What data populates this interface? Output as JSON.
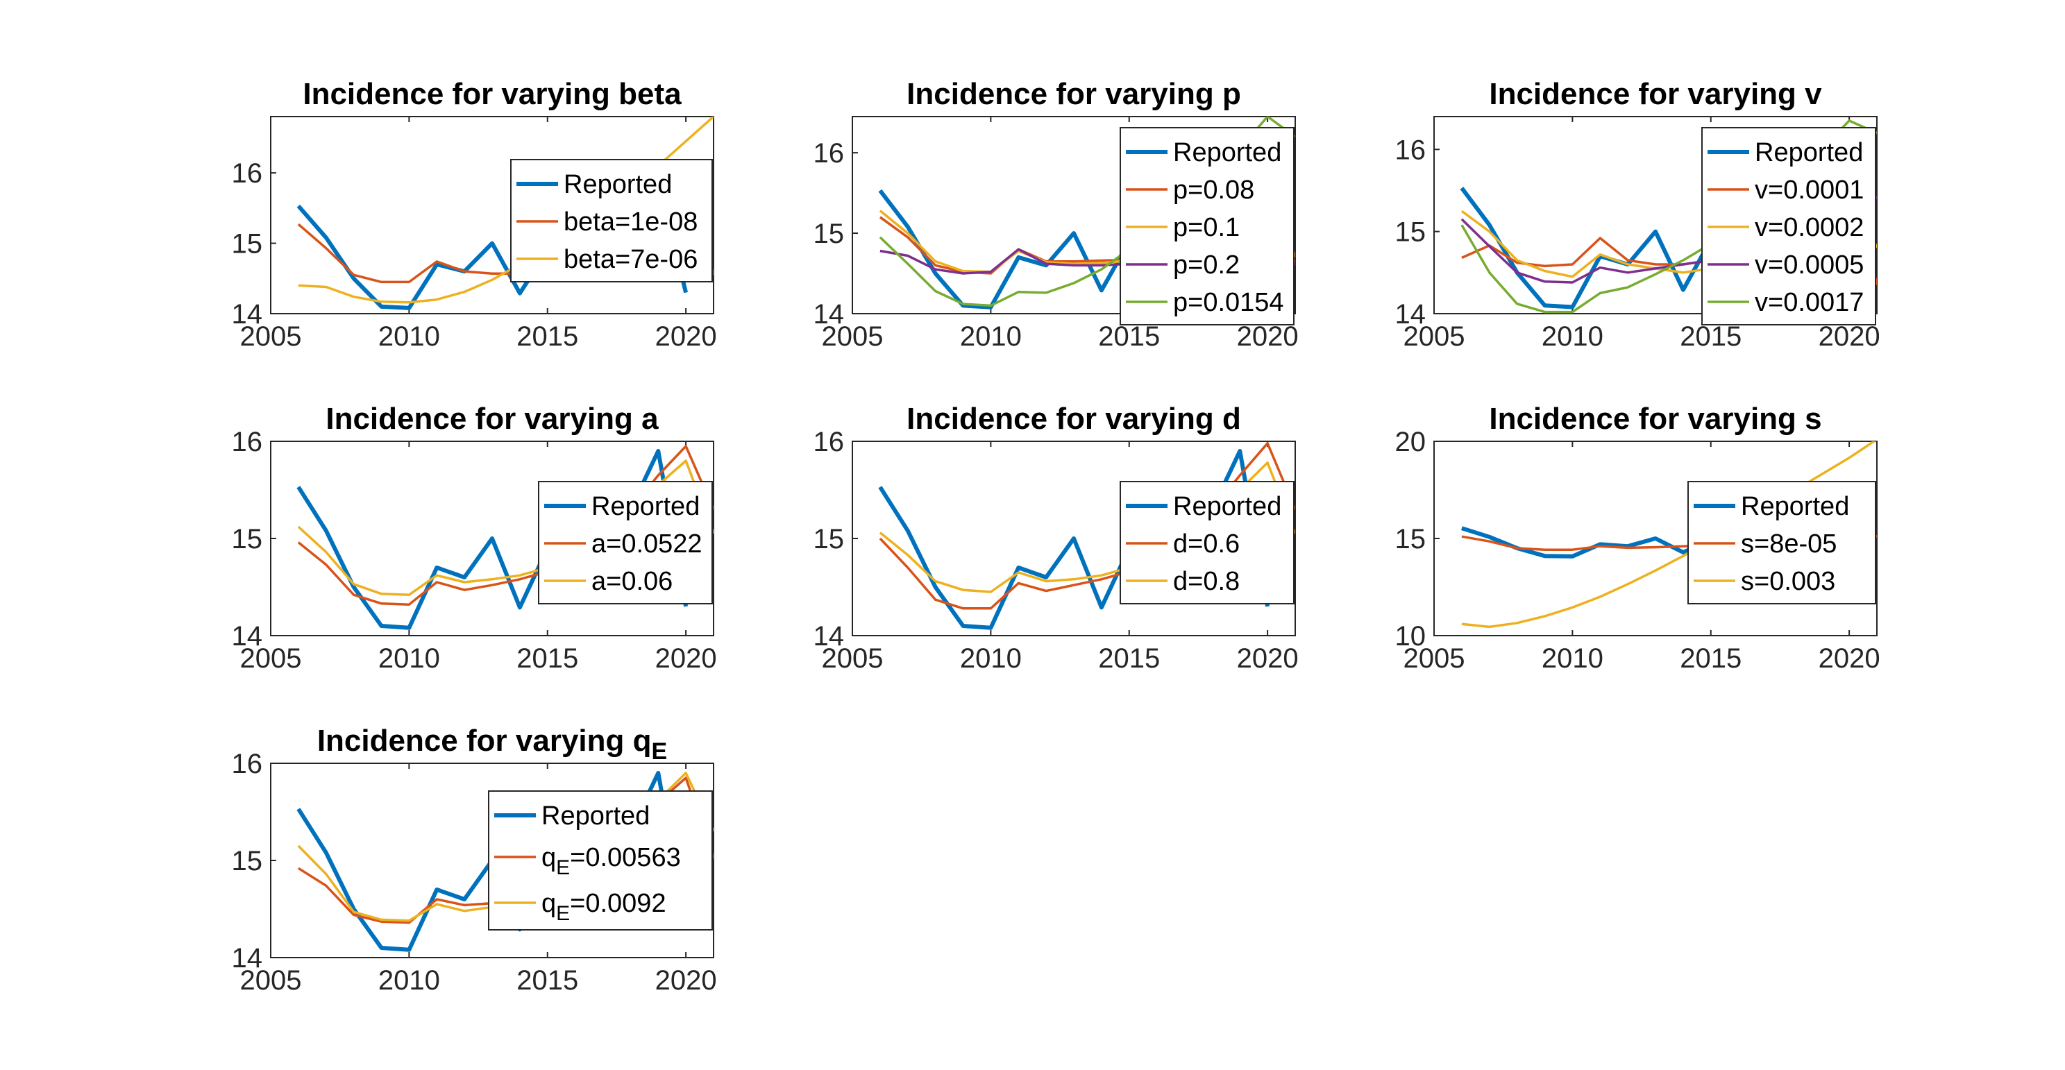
{
  "colors": {
    "reported": "#0072BD",
    "orange": "#D95319",
    "yellow": "#EDB120",
    "purple": "#7E2F8E",
    "green": "#77AC30"
  },
  "chart_data": [
    {
      "type": "line",
      "title": "Incidence for varying beta",
      "xlim": [
        2005,
        2021
      ],
      "ylim": [
        14,
        16.8
      ],
      "xticks": [
        "2005",
        "2010",
        "2015",
        "2020"
      ],
      "yticks": [
        "14",
        "15",
        "16"
      ],
      "legend": "right",
      "x": [
        2006,
        2007,
        2008,
        2009,
        2010,
        2011,
        2012,
        2013,
        2014,
        2015,
        2016,
        2017,
        2018,
        2019,
        2020,
        2021
      ],
      "series": [
        {
          "name": "Reported",
          "color": "reported",
          "width": 6,
          "values": [
            15.53,
            15.08,
            14.5,
            14.1,
            14.08,
            14.7,
            14.6,
            15.0,
            14.29,
            14.9,
            15.0,
            14.9,
            15.3,
            15.9,
            14.3,
            null
          ]
        },
        {
          "name": "beta=1e-08",
          "color": "orange",
          "width": 3.5,
          "values": [
            15.27,
            14.93,
            14.55,
            14.45,
            14.45,
            14.74,
            14.6,
            14.57,
            14.57,
            14.6,
            14.7,
            14.85,
            15.1,
            15.6,
            15.9,
            14.55
          ]
        },
        {
          "name": "beta=7e-06",
          "color": "yellow",
          "width": 3.5,
          "values": [
            14.4,
            14.38,
            14.24,
            14.17,
            14.16,
            14.2,
            14.31,
            14.48,
            14.7,
            14.95,
            15.2,
            15.5,
            15.8,
            16.1,
            16.45,
            16.8
          ]
        }
      ]
    },
    {
      "type": "line",
      "title": "Incidence for varying p",
      "xlim": [
        2005,
        2021
      ],
      "ylim": [
        14,
        16.45
      ],
      "xticks": [
        "2005",
        "2010",
        "2015",
        "2020"
      ],
      "yticks": [
        "14",
        "15",
        "16"
      ],
      "legend": "right",
      "x": [
        2006,
        2007,
        2008,
        2009,
        2010,
        2011,
        2012,
        2013,
        2014,
        2015,
        2016,
        2017,
        2018,
        2019,
        2020,
        2021
      ],
      "series": [
        {
          "name": "Reported",
          "color": "reported",
          "width": 6,
          "values": [
            15.53,
            15.08,
            14.5,
            14.1,
            14.08,
            14.7,
            14.6,
            15.0,
            14.29,
            14.9,
            15.0,
            14.9,
            15.3,
            15.9,
            14.3,
            null
          ]
        },
        {
          "name": "p=0.08",
          "color": "orange",
          "width": 3.5,
          "values": [
            15.2,
            14.95,
            14.6,
            14.52,
            14.5,
            14.8,
            14.65,
            14.65,
            14.66,
            14.67,
            14.75,
            14.9,
            15.1,
            15.5,
            15.9,
            14.6
          ]
        },
        {
          "name": "p=0.1",
          "color": "yellow",
          "width": 3.5,
          "values": [
            15.28,
            15.0,
            14.65,
            14.53,
            14.52,
            14.78,
            14.64,
            14.62,
            14.63,
            14.66,
            14.74,
            14.88,
            15.05,
            15.4,
            15.85,
            14.7
          ]
        },
        {
          "name": "p=0.2",
          "color": "purple",
          "width": 3.5,
          "values": [
            14.78,
            14.72,
            14.55,
            14.5,
            14.52,
            14.8,
            14.62,
            14.6,
            14.6,
            14.62,
            14.7,
            14.85,
            15.0,
            15.3,
            15.15,
            14.6
          ]
        },
        {
          "name": "p=0.0154",
          "color": "green",
          "width": 3.5,
          "values": [
            14.95,
            14.62,
            14.28,
            14.12,
            14.1,
            14.27,
            14.26,
            14.38,
            14.55,
            14.8,
            15.05,
            15.35,
            15.7,
            16.05,
            16.45,
            16.2
          ]
        }
      ]
    },
    {
      "type": "line",
      "title": "Incidence for varying v",
      "xlim": [
        2005,
        2021
      ],
      "ylim": [
        14,
        16.4
      ],
      "xticks": [
        "2005",
        "2010",
        "2015",
        "2020"
      ],
      "yticks": [
        "14",
        "15",
        "16"
      ],
      "legend": "right",
      "x": [
        2006,
        2007,
        2008,
        2009,
        2010,
        2011,
        2012,
        2013,
        2014,
        2015,
        2016,
        2017,
        2018,
        2019,
        2020,
        2021
      ],
      "series": [
        {
          "name": "Reported",
          "color": "reported",
          "width": 6,
          "values": [
            15.53,
            15.08,
            14.5,
            14.1,
            14.08,
            14.7,
            14.6,
            15.0,
            14.29,
            14.9,
            15.0,
            14.9,
            15.3,
            15.9,
            14.3,
            null
          ]
        },
        {
          "name": "v=0.0001",
          "color": "orange",
          "width": 3.5,
          "values": [
            14.68,
            14.83,
            14.62,
            14.58,
            14.6,
            14.92,
            14.65,
            14.6,
            14.6,
            14.65,
            14.75,
            14.9,
            15.1,
            15.5,
            15.8,
            14.35
          ]
        },
        {
          "name": "v=0.0002",
          "color": "yellow",
          "width": 3.5,
          "values": [
            15.25,
            15.0,
            14.65,
            14.52,
            14.45,
            14.72,
            14.6,
            14.55,
            14.5,
            14.55,
            14.65,
            14.8,
            15.0,
            15.3,
            15.6,
            14.8
          ]
        },
        {
          "name": "v=0.0005",
          "color": "purple",
          "width": 3.5,
          "values": [
            15.15,
            14.82,
            14.5,
            14.39,
            14.38,
            14.56,
            14.5,
            14.55,
            14.6,
            14.65,
            14.75,
            14.9,
            15.1,
            15.4,
            15.8,
            15.4
          ]
        },
        {
          "name": "v=0.0017",
          "color": "green",
          "width": 3.5,
          "values": [
            15.08,
            14.5,
            14.12,
            14.02,
            14.02,
            14.25,
            14.32,
            14.48,
            14.65,
            14.85,
            15.1,
            15.4,
            15.7,
            16.0,
            16.35,
            16.2
          ]
        }
      ]
    },
    {
      "type": "line",
      "title": "Incidence for varying a",
      "xlim": [
        2005,
        2021
      ],
      "ylim": [
        14,
        16
      ],
      "xticks": [
        "2005",
        "2010",
        "2015",
        "2020"
      ],
      "yticks": [
        "14",
        "15",
        "16"
      ],
      "legend": "right",
      "x": [
        2006,
        2007,
        2008,
        2009,
        2010,
        2011,
        2012,
        2013,
        2014,
        2015,
        2016,
        2017,
        2018,
        2019,
        2020,
        2021
      ],
      "series": [
        {
          "name": "Reported",
          "color": "reported",
          "width": 6,
          "values": [
            15.53,
            15.08,
            14.5,
            14.1,
            14.08,
            14.7,
            14.6,
            15.0,
            14.29,
            14.9,
            15.0,
            14.9,
            15.3,
            15.9,
            14.3,
            null
          ]
        },
        {
          "name": "a=0.0522",
          "color": "orange",
          "width": 3.5,
          "values": [
            14.96,
            14.73,
            14.42,
            14.33,
            14.32,
            14.55,
            14.47,
            14.52,
            14.58,
            14.66,
            14.8,
            15.0,
            15.3,
            15.65,
            15.95,
            15.3
          ]
        },
        {
          "name": "a=0.06",
          "color": "yellow",
          "width": 3.5,
          "values": [
            15.12,
            14.86,
            14.53,
            14.43,
            14.42,
            14.62,
            14.55,
            14.58,
            14.62,
            14.7,
            14.82,
            15.0,
            15.25,
            15.55,
            15.8,
            15.05
          ]
        }
      ]
    },
    {
      "type": "line",
      "title": "Incidence for varying d",
      "xlim": [
        2005,
        2021
      ],
      "ylim": [
        14,
        16
      ],
      "xticks": [
        "2005",
        "2010",
        "2015",
        "2020"
      ],
      "yticks": [
        "14",
        "15",
        "16"
      ],
      "legend": "right",
      "x": [
        2006,
        2007,
        2008,
        2009,
        2010,
        2011,
        2012,
        2013,
        2014,
        2015,
        2016,
        2017,
        2018,
        2019,
        2020,
        2021
      ],
      "series": [
        {
          "name": "Reported",
          "color": "reported",
          "width": 6,
          "values": [
            15.53,
            15.08,
            14.5,
            14.1,
            14.08,
            14.7,
            14.6,
            15.0,
            14.29,
            14.9,
            15.0,
            14.9,
            15.3,
            15.9,
            14.3,
            null
          ]
        },
        {
          "name": "d=0.6",
          "color": "orange",
          "width": 3.5,
          "values": [
            15.0,
            14.7,
            14.37,
            14.28,
            14.28,
            14.54,
            14.46,
            14.52,
            14.58,
            14.66,
            14.8,
            15.0,
            15.3,
            15.65,
            15.98,
            15.3
          ]
        },
        {
          "name": "d=0.8",
          "color": "yellow",
          "width": 3.5,
          "values": [
            15.06,
            14.83,
            14.56,
            14.47,
            14.45,
            14.65,
            14.56,
            14.58,
            14.62,
            14.7,
            14.82,
            15.0,
            15.22,
            15.5,
            15.78,
            15.05
          ]
        }
      ]
    },
    {
      "type": "line",
      "title": "Incidence for varying s",
      "xlim": [
        2005,
        2021
      ],
      "ylim": [
        10,
        20
      ],
      "xticks": [
        "2005",
        "2010",
        "2015",
        "2020"
      ],
      "yticks": [
        "10",
        "15",
        "20"
      ],
      "legend": "right",
      "x": [
        2006,
        2007,
        2008,
        2009,
        2010,
        2011,
        2012,
        2013,
        2014,
        2015,
        2016,
        2017,
        2018,
        2019,
        2020,
        2021
      ],
      "series": [
        {
          "name": "Reported",
          "color": "reported",
          "width": 6,
          "values": [
            15.53,
            15.08,
            14.5,
            14.1,
            14.08,
            14.7,
            14.6,
            15.0,
            14.29,
            14.9,
            15.0,
            14.9,
            15.3,
            15.9,
            14.3,
            null
          ]
        },
        {
          "name": "s=8e-05",
          "color": "orange",
          "width": 3.5,
          "values": [
            15.1,
            14.85,
            14.5,
            14.42,
            14.42,
            14.6,
            14.52,
            14.55,
            14.6,
            14.65,
            14.75,
            14.9,
            15.1,
            15.4,
            15.6,
            15.1
          ]
        },
        {
          "name": "s=0.003",
          "color": "yellow",
          "width": 3.5,
          "values": [
            10.6,
            10.45,
            10.65,
            11.0,
            11.45,
            12.0,
            12.65,
            13.35,
            14.1,
            14.9,
            15.75,
            16.6,
            17.45,
            18.3,
            19.15,
            20.1
          ]
        }
      ]
    },
    {
      "type": "line",
      "title": "Incidence for varying q",
      "title_subscript": "E",
      "xlim": [
        2005,
        2021
      ],
      "ylim": [
        14,
        16
      ],
      "xticks": [
        "2005",
        "2010",
        "2015",
        "2020"
      ],
      "yticks": [
        "14",
        "15",
        "16"
      ],
      "legend": "right",
      "x": [
        2006,
        2007,
        2008,
        2009,
        2010,
        2011,
        2012,
        2013,
        2014,
        2015,
        2016,
        2017,
        2018,
        2019,
        2020,
        2021
      ],
      "series": [
        {
          "name": "Reported",
          "color": "reported",
          "width": 6,
          "values": [
            15.53,
            15.08,
            14.5,
            14.1,
            14.08,
            14.7,
            14.6,
            15.0,
            14.29,
            14.9,
            15.0,
            14.9,
            15.3,
            15.9,
            14.3,
            null
          ]
        },
        {
          "name": "q",
          "name_subscript": "E",
          "name_suffix": "=0.00563",
          "color": "orange",
          "width": 3.5,
          "values": [
            14.92,
            14.74,
            14.44,
            14.37,
            14.36,
            14.6,
            14.54,
            14.56,
            14.58,
            14.64,
            14.78,
            14.98,
            15.25,
            15.6,
            15.85,
            15.02
          ]
        },
        {
          "name": "q",
          "name_subscript": "E",
          "name_suffix": "=0.0092",
          "color": "yellow",
          "width": 3.5,
          "values": [
            15.15,
            14.86,
            14.47,
            14.39,
            14.38,
            14.55,
            14.48,
            14.52,
            14.56,
            14.62,
            14.78,
            15.0,
            15.3,
            15.62,
            15.9,
            15.3
          ]
        }
      ]
    }
  ]
}
